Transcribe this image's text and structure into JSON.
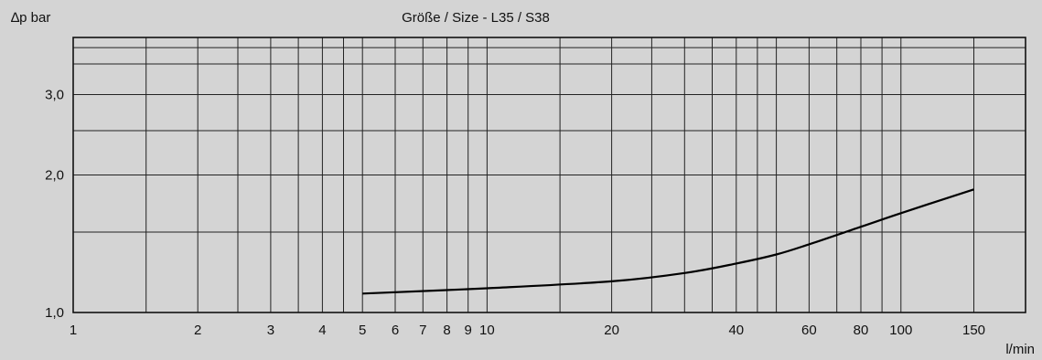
{
  "chart_data": {
    "type": "line",
    "title": "Größe / Size - L35 / S38",
    "ylabel": "∆p bar",
    "xlabel": "l/min",
    "x_scale": "log",
    "y_scale": "log",
    "xlim": [
      1,
      200
    ],
    "ylim": [
      1.0,
      4.0
    ],
    "x_ticks": [
      1,
      2,
      3,
      4,
      5,
      6,
      7,
      8,
      9,
      10,
      20,
      40,
      60,
      80,
      100,
      150
    ],
    "x_tick_labels": [
      "1",
      "2",
      "3",
      "4",
      "5",
      "6",
      "7",
      "8",
      "9",
      "10",
      "20",
      "40",
      "60",
      "80",
      "100",
      "150"
    ],
    "x_gridlines": [
      1.5,
      2,
      2.5,
      3,
      3.5,
      4,
      4.5,
      5,
      6,
      7,
      8,
      9,
      10,
      15,
      20,
      25,
      30,
      35,
      40,
      45,
      50,
      60,
      70,
      80,
      90,
      100,
      150
    ],
    "y_ticks": [
      1.0,
      2.0,
      3.0
    ],
    "y_tick_labels": [
      "1,0",
      "2,0",
      "3,0"
    ],
    "y_gridlines": [
      1.5,
      2.0,
      2.5,
      3.0,
      3.5,
      3.8
    ],
    "grid": true,
    "series": [
      {
        "x": [
          5,
          10,
          20,
          30,
          40,
          50,
          60,
          80,
          100,
          150
        ],
        "y": [
          1.1,
          1.13,
          1.17,
          1.22,
          1.28,
          1.34,
          1.41,
          1.54,
          1.65,
          1.86
        ]
      }
    ]
  }
}
